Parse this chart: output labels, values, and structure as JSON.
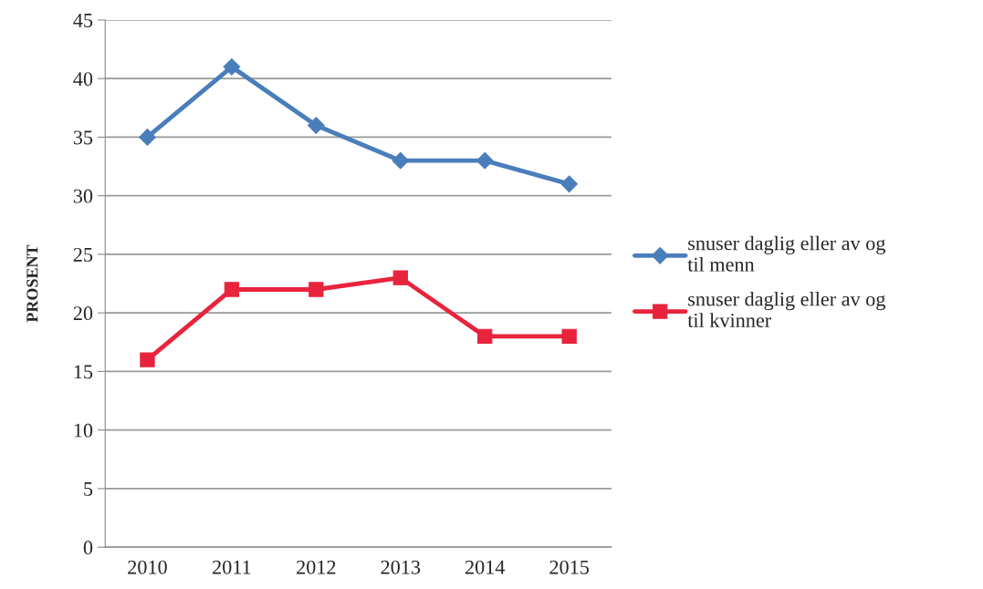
{
  "chart_data": {
    "type": "line",
    "ylabel": "PROSENT",
    "categories": [
      "2010",
      "2011",
      "2012",
      "2013",
      "2014",
      "2015"
    ],
    "series": [
      {
        "name": "snuser daglig eller av og til menn",
        "color": "#4a7ebb",
        "marker": "diamond",
        "values": [
          35,
          41,
          36,
          33,
          33,
          31
        ]
      },
      {
        "name": "snuser daglig eller av og til kvinner",
        "color": "#e8243c",
        "marker": "square",
        "values": [
          16,
          22,
          22,
          23,
          18,
          18
        ]
      }
    ],
    "ylim": [
      0,
      45
    ],
    "yticks": [
      0,
      5,
      10,
      15,
      20,
      25,
      30,
      35,
      40,
      45
    ],
    "grid": "y",
    "legend": "right",
    "line_style": "solid"
  }
}
